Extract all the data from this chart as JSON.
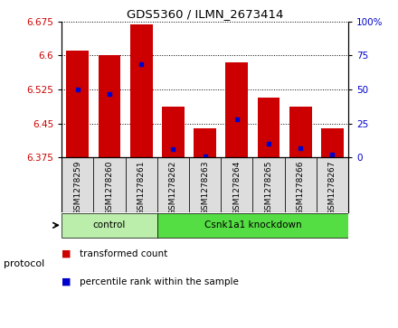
{
  "title": "GDS5360 / ILMN_2673414",
  "samples": [
    "GSM1278259",
    "GSM1278260",
    "GSM1278261",
    "GSM1278262",
    "GSM1278263",
    "GSM1278264",
    "GSM1278265",
    "GSM1278266",
    "GSM1278267"
  ],
  "bar_heights": [
    6.61,
    6.6,
    6.668,
    6.487,
    6.44,
    6.585,
    6.508,
    6.487,
    6.44
  ],
  "percentile_values": [
    6.525,
    6.515,
    6.58,
    6.393,
    6.378,
    6.46,
    6.405,
    6.395,
    6.382
  ],
  "ymin": 6.375,
  "ymax": 6.675,
  "yticks": [
    6.375,
    6.45,
    6.525,
    6.6,
    6.675
  ],
  "right_yticks": [
    0,
    25,
    50,
    75,
    100
  ],
  "bar_color": "#cc0000",
  "blue_color": "#0000cc",
  "protocol_groups": [
    {
      "label": "control",
      "start": 0,
      "end": 3,
      "color": "#bbeeaa"
    },
    {
      "label": "Csnk1a1 knockdown",
      "start": 3,
      "end": 9,
      "color": "#55dd44"
    }
  ],
  "protocol_label": "protocol",
  "legend_items": [
    {
      "label": "transformed count",
      "color": "#cc0000"
    },
    {
      "label": "percentile rank within the sample",
      "color": "#0000cc"
    }
  ],
  "bar_width": 0.7,
  "background_color": "#ffffff",
  "sample_box_color": "#dddddd",
  "grid_color": "#000000",
  "tick_label_color_left": "#cc0000",
  "tick_label_color_right": "#0000cc"
}
